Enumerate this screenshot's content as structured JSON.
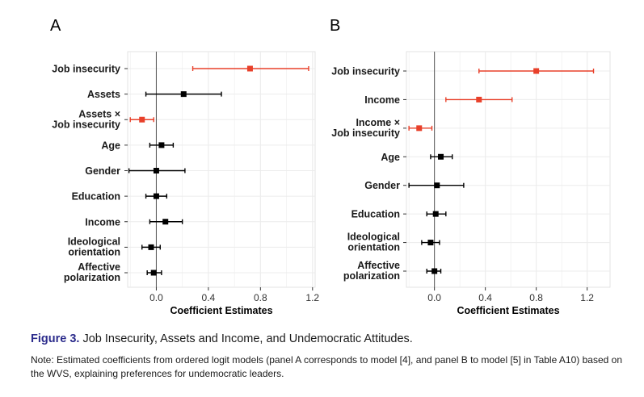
{
  "figure": {
    "label": "Figure 3.",
    "title": "Job Insecurity, Assets and Income, and Undemocratic Attitudes.",
    "note": "Note: Estimated coefficients from ordered logit models (panel A corresponds to model [4], and panel B to model [5] in Table A10) based on the WVS, explaining preferences for undemocratic leaders."
  },
  "colors": {
    "highlight": "#e8402a",
    "default": "#000000",
    "grid": "#ececec",
    "zero_line": "#555555"
  },
  "chart_data": [
    {
      "panel": "A",
      "type": "coefficient-plot",
      "xlabel": "Coefficient Estimates",
      "xlim": [
        -0.22,
        1.22
      ],
      "xticks": [
        0.0,
        0.4,
        0.8,
        1.2
      ],
      "xtick_labels": [
        "0.0",
        "0.4",
        "0.8",
        "1.2"
      ],
      "reference_line": 0,
      "variables": [
        {
          "name": "job-insecurity",
          "label": [
            "Job insecurity"
          ],
          "estimate": 0.72,
          "low": 0.28,
          "high": 1.17,
          "highlight": true
        },
        {
          "name": "assets",
          "label": [
            "Assets"
          ],
          "estimate": 0.21,
          "low": -0.08,
          "high": 0.5,
          "highlight": false
        },
        {
          "name": "assets-x-job-insecurity",
          "label": [
            "Assets ×",
            "Job insecurity"
          ],
          "estimate": -0.11,
          "low": -0.2,
          "high": -0.02,
          "highlight": true
        },
        {
          "name": "age",
          "label": [
            "Age"
          ],
          "estimate": 0.04,
          "low": -0.05,
          "high": 0.13,
          "highlight": false
        },
        {
          "name": "gender",
          "label": [
            "Gender"
          ],
          "estimate": 0.0,
          "low": -0.21,
          "high": 0.22,
          "highlight": false
        },
        {
          "name": "education",
          "label": [
            "Education"
          ],
          "estimate": 0.0,
          "low": -0.08,
          "high": 0.08,
          "highlight": false
        },
        {
          "name": "income",
          "label": [
            "Income"
          ],
          "estimate": 0.07,
          "low": -0.05,
          "high": 0.2,
          "highlight": false
        },
        {
          "name": "ideological-orientation",
          "label": [
            "Ideological",
            "orientation"
          ],
          "estimate": -0.04,
          "low": -0.11,
          "high": 0.03,
          "highlight": false
        },
        {
          "name": "affective-polarization",
          "label": [
            "Affective",
            "polarization"
          ],
          "estimate": -0.02,
          "low": -0.07,
          "high": 0.04,
          "highlight": false
        }
      ]
    },
    {
      "panel": "B",
      "type": "coefficient-plot",
      "xlabel": "Coefficient Estimates",
      "xlim": [
        -0.22,
        1.38
      ],
      "xticks": [
        0.0,
        0.4,
        0.8,
        1.2
      ],
      "xtick_labels": [
        "0.0",
        "0.4",
        "0.8",
        "1.2"
      ],
      "reference_line": 0,
      "variables": [
        {
          "name": "job-insecurity",
          "label": [
            "Job insecurity"
          ],
          "estimate": 0.8,
          "low": 0.35,
          "high": 1.25,
          "highlight": true
        },
        {
          "name": "income",
          "label": [
            "Income"
          ],
          "estimate": 0.35,
          "low": 0.09,
          "high": 0.61,
          "highlight": true
        },
        {
          "name": "income-x-job-insecurity",
          "label": [
            "Income ×",
            "Job insecurity"
          ],
          "estimate": -0.12,
          "low": -0.2,
          "high": -0.02,
          "highlight": true
        },
        {
          "name": "age",
          "label": [
            "Age"
          ],
          "estimate": 0.05,
          "low": -0.03,
          "high": 0.14,
          "highlight": false
        },
        {
          "name": "gender",
          "label": [
            "Gender"
          ],
          "estimate": 0.02,
          "low": -0.2,
          "high": 0.23,
          "highlight": false
        },
        {
          "name": "education",
          "label": [
            "Education"
          ],
          "estimate": 0.01,
          "low": -0.06,
          "high": 0.09,
          "highlight": false
        },
        {
          "name": "ideological-orientation",
          "label": [
            "Ideological",
            "orientation"
          ],
          "estimate": -0.03,
          "low": -0.1,
          "high": 0.04,
          "highlight": false
        },
        {
          "name": "affective-polarization",
          "label": [
            "Affective",
            "polarization"
          ],
          "estimate": 0.0,
          "low": -0.06,
          "high": 0.05,
          "highlight": false
        }
      ]
    }
  ]
}
